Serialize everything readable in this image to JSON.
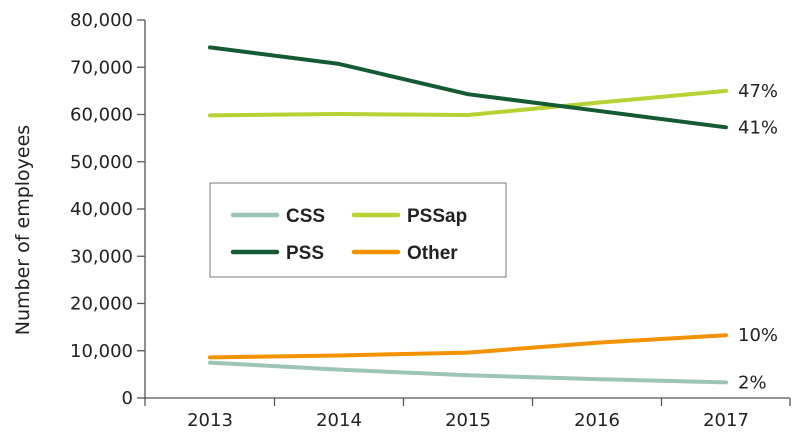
{
  "chart_data": {
    "type": "line",
    "title": "",
    "xlabel": "",
    "ylabel": "Number of employees",
    "x": [
      "2013",
      "2014",
      "2015",
      "2016",
      "2017"
    ],
    "ylim": [
      0,
      80000
    ],
    "y_ticks": [
      "0",
      "10,000",
      "20,000",
      "30,000",
      "40,000",
      "50,000",
      "60,000",
      "70,000",
      "80,000"
    ],
    "grid": false,
    "legend_position": "center-left",
    "series": [
      {
        "name": "CSS",
        "color": "#9cc5b3",
        "values": [
          7500,
          6000,
          4800,
          4000,
          3300
        ],
        "end_label": "2%"
      },
      {
        "name": "PSSap",
        "color": "#b5d334",
        "values": [
          59800,
          60100,
          59900,
          62500,
          65000
        ],
        "end_label": "47%"
      },
      {
        "name": "PSS",
        "color": "#145a32",
        "values": [
          74200,
          70700,
          64300,
          60800,
          57300
        ],
        "end_label": "41%"
      },
      {
        "name": "Other",
        "color": "#f39200",
        "values": [
          8600,
          9000,
          9600,
          11700,
          13300
        ],
        "end_label": "10%"
      }
    ]
  }
}
